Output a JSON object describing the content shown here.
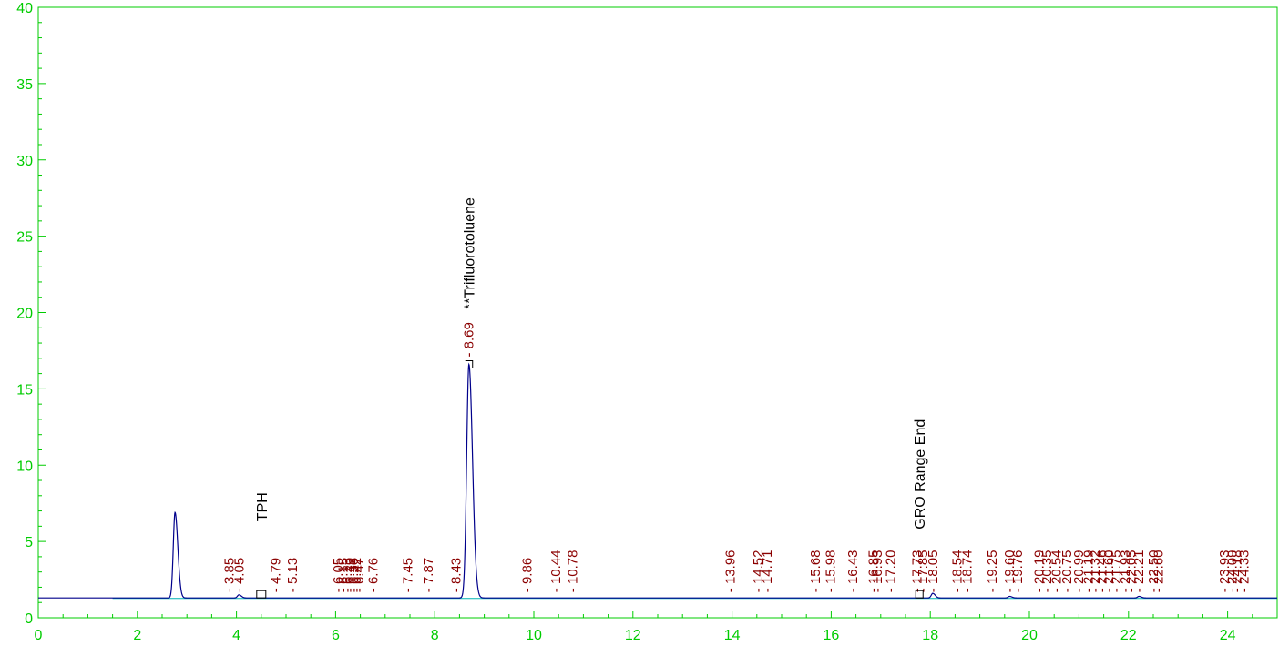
{
  "chart_data": {
    "type": "line",
    "title": "",
    "xlabel": "",
    "ylabel": "",
    "xlim": [
      0,
      25
    ],
    "ylim": [
      0,
      40
    ],
    "grid": false,
    "x_ticks": [
      0,
      2,
      4,
      6,
      8,
      10,
      12,
      14,
      16,
      18,
      20,
      22,
      24
    ],
    "y_ticks": [
      0,
      5,
      10,
      15,
      20,
      25,
      30,
      35,
      40
    ],
    "x_tick_labels": [
      "0",
      "2",
      "4",
      "6",
      "8",
      "10",
      "12",
      "14",
      "16",
      "18",
      "20",
      "22",
      "24"
    ],
    "y_tick_labels": [
      "0",
      "5",
      "10",
      "15",
      "20",
      "25",
      "30",
      "35",
      "40"
    ],
    "baseline": 1.3,
    "series": [
      {
        "color": "#00008b",
        "peaks": [
          {
            "x": 2.76,
            "height": 6.9,
            "width": 0.035
          },
          {
            "x": 4.05,
            "height": 1.5,
            "width": 0.03
          },
          {
            "x": 8.69,
            "height": 16.6,
            "width": 0.045
          },
          {
            "x": 18.05,
            "height": 1.6,
            "width": 0.03
          },
          {
            "x": 19.6,
            "height": 1.4,
            "width": 0.03
          },
          {
            "x": 22.21,
            "height": 1.4,
            "width": 0.03
          }
        ]
      }
    ],
    "baseline_fit_color": "#00b3b3",
    "retention_time_labels": [
      "3.85",
      "4.05",
      "4.79",
      "5.13",
      "6.05",
      "6.15",
      "6.23",
      "6.29",
      "6.36",
      "6.42",
      "6.47",
      "6.76",
      "7.45",
      "7.87",
      "8.43",
      "8.69",
      "9.86",
      "10.44",
      "10.78",
      "13.96",
      "14.52",
      "14.71",
      "15.68",
      "15.98",
      "16.43",
      "16.85",
      "16.93",
      "17.20",
      "17.73",
      "17.85",
      "18.05",
      "18.54",
      "18.74",
      "19.25",
      "19.60",
      "19.76",
      "20.19",
      "20.35",
      "20.54",
      "20.75",
      "20.99",
      "21.19",
      "21.32",
      "21.46",
      "21.60",
      "21.75",
      "21.93",
      "22.05",
      "22.21",
      "22.50",
      "22.60",
      "23.93",
      "24.09",
      "24.18",
      "24.33"
    ],
    "annotations": [
      {
        "text": "TPH",
        "x": 4.5
      },
      {
        "text": "**Trifluorotoluene",
        "x": 8.69
      },
      {
        "text": "GRO Range End",
        "x": 17.78
      }
    ],
    "colors": {
      "axis": "#00cc00",
      "rt_label": "#8b0000",
      "annotation": "#000000"
    }
  }
}
